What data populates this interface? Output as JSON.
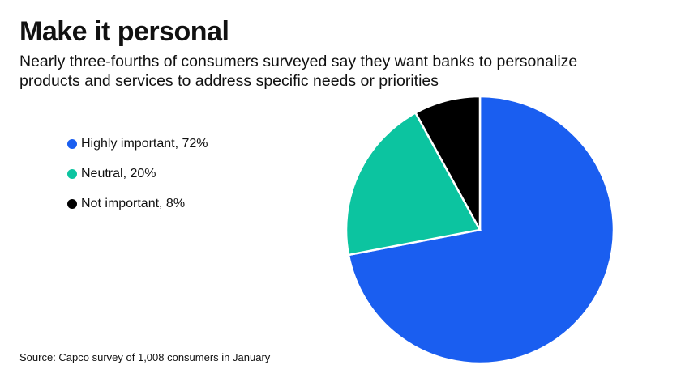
{
  "chart_data": {
    "type": "pie",
    "title": "Make it personal",
    "subtitle": "Nearly three-fourths of consumers surveyed say they want banks to personalize products and services to address specific needs or priorities",
    "categories": [
      "Highly important, 72%",
      "Neutral, 20%",
      "Not important, 8%"
    ],
    "values": [
      72,
      20,
      8
    ],
    "colors": [
      "#1a5ef0",
      "#0cc4a0",
      "#000000"
    ],
    "source": "Source: Capco survey of 1,008 consumers in January"
  }
}
